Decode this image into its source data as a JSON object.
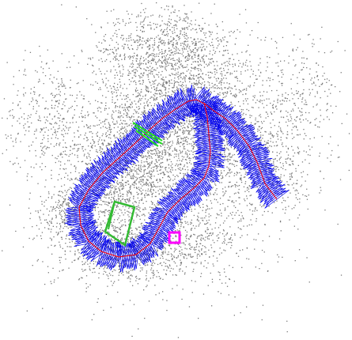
{
  "scene": {
    "kind": "slam-point-cloud-map",
    "colors": {
      "background": "#ffffff",
      "map_points": "#7a7a7a",
      "keyframes": "#0000ee",
      "trajectory": "#ff0000",
      "current_frame": "#22dd22",
      "reference_frame": "#33bb33",
      "highlight_marker": "#ff00ff"
    }
  }
}
